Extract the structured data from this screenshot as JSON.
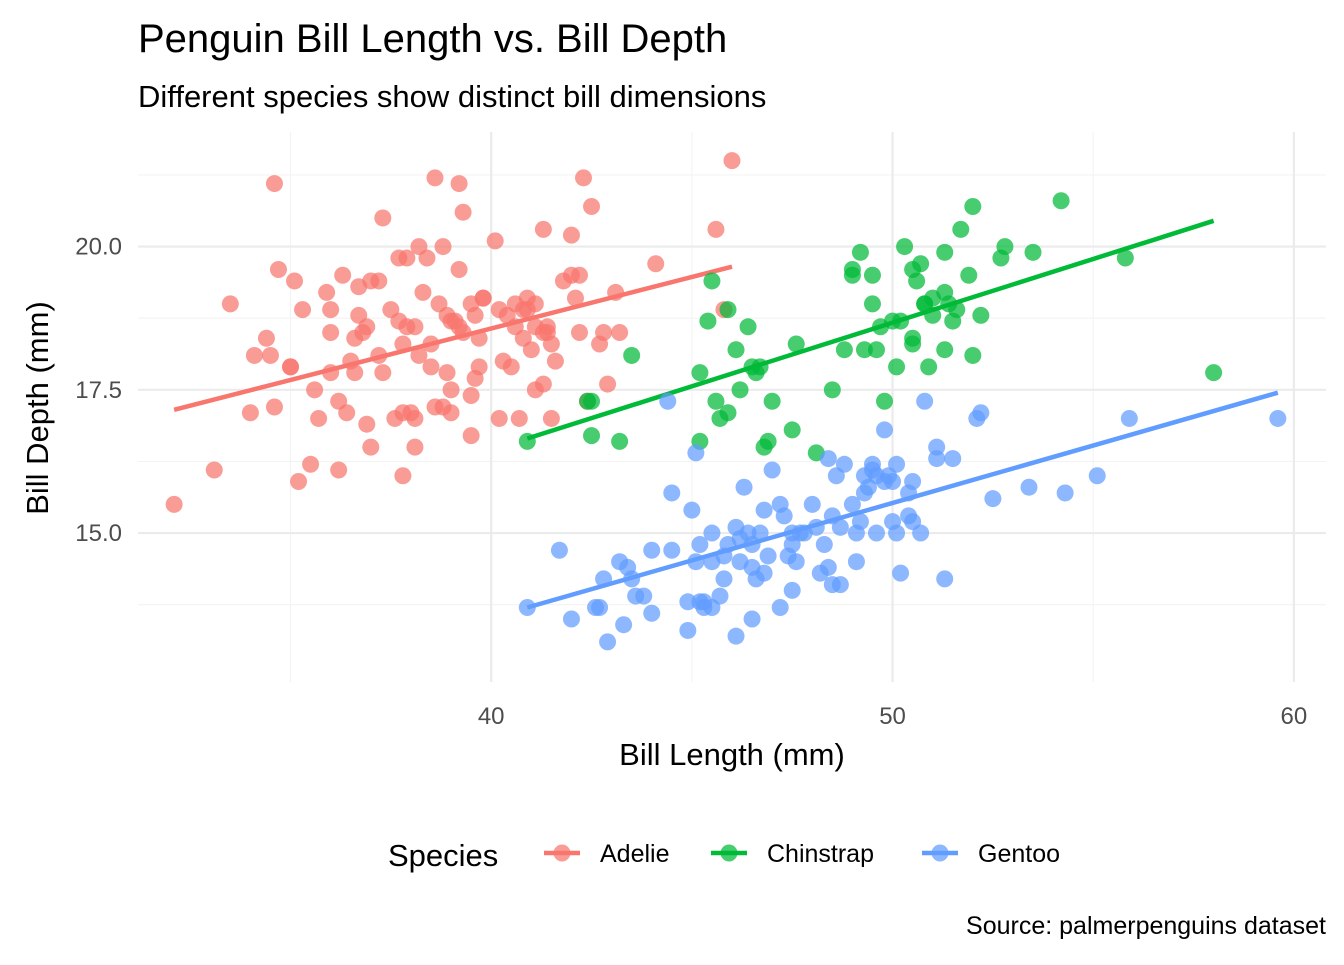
{
  "chart_data": {
    "type": "scatter",
    "title": "Penguin Bill Length vs. Bill Depth",
    "subtitle": "Different species show distinct bill dimensions",
    "xlabel": "Bill Length (mm)",
    "ylabel": "Bill Depth (mm)",
    "caption": "Source: palmerpenguins dataset",
    "xlim": [
      31.2,
      60.8
    ],
    "ylim": [
      12.4,
      22.0
    ],
    "x_ticks": [
      40,
      50,
      60
    ],
    "x_tick_labels": [
      "40",
      "50",
      "60"
    ],
    "x_minor_ticks": [
      35,
      45,
      55
    ],
    "y_ticks": [
      15.0,
      17.5,
      20.0
    ],
    "y_tick_labels": [
      "15.0",
      "17.5",
      "20.0"
    ],
    "y_minor_ticks": [
      13.75,
      16.25,
      18.75,
      21.25
    ],
    "grid": true,
    "legend": {
      "title": "Species",
      "position": "bottom"
    },
    "series": [
      {
        "name": "Adelie",
        "color": "#F8766D",
        "fit": [
          [
            32.1,
            17.15
          ],
          [
            46.0,
            19.65
          ]
        ],
        "points": [
          [
            32.1,
            15.5
          ],
          [
            33.1,
            16.1
          ],
          [
            33.5,
            19.0
          ],
          [
            34.0,
            17.1
          ],
          [
            34.1,
            18.1
          ],
          [
            34.4,
            18.4
          ],
          [
            34.5,
            18.1
          ],
          [
            34.6,
            17.2
          ],
          [
            34.6,
            21.1
          ],
          [
            35.1,
            19.4
          ],
          [
            35.0,
            17.9
          ],
          [
            35.2,
            15.9
          ],
          [
            35.3,
            18.9
          ],
          [
            35.5,
            16.2
          ],
          [
            35.6,
            17.5
          ],
          [
            35.7,
            17.0
          ],
          [
            35.9,
            19.2
          ],
          [
            36.0,
            18.5
          ],
          [
            36.0,
            17.8
          ],
          [
            36.2,
            17.3
          ],
          [
            36.2,
            16.1
          ],
          [
            36.3,
            19.5
          ],
          [
            36.5,
            18.0
          ],
          [
            36.6,
            17.8
          ],
          [
            36.7,
            18.8
          ],
          [
            36.7,
            19.3
          ],
          [
            36.8,
            18.5
          ],
          [
            36.9,
            16.9
          ],
          [
            37.0,
            16.5
          ],
          [
            37.2,
            18.1
          ],
          [
            37.3,
            20.5
          ],
          [
            37.6,
            17.0
          ],
          [
            37.7,
            18.7
          ],
          [
            37.8,
            18.3
          ],
          [
            37.8,
            16.0
          ],
          [
            37.9,
            18.6
          ],
          [
            37.9,
            19.8
          ],
          [
            38.1,
            17.0
          ],
          [
            38.1,
            18.6
          ],
          [
            38.2,
            20.0
          ],
          [
            38.3,
            19.2
          ],
          [
            38.5,
            17.9
          ],
          [
            38.6,
            21.2
          ],
          [
            38.7,
            19.0
          ],
          [
            38.8,
            17.2
          ],
          [
            38.9,
            17.8
          ],
          [
            39.0,
            18.7
          ],
          [
            39.0,
            17.5
          ],
          [
            39.1,
            18.7
          ],
          [
            39.2,
            19.6
          ],
          [
            39.2,
            21.1
          ],
          [
            39.3,
            20.6
          ],
          [
            39.5,
            16.7
          ],
          [
            39.5,
            17.4
          ],
          [
            39.6,
            17.7
          ],
          [
            39.7,
            18.4
          ],
          [
            39.8,
            19.1
          ],
          [
            40.1,
            20.1
          ],
          [
            40.2,
            17.0
          ],
          [
            40.3,
            18.0
          ],
          [
            40.5,
            17.9
          ],
          [
            40.6,
            18.6
          ],
          [
            40.7,
            17.0
          ],
          [
            40.8,
            18.4
          ],
          [
            40.9,
            18.9
          ],
          [
            41.1,
            18.6
          ],
          [
            41.1,
            19.0
          ],
          [
            41.3,
            17.6
          ],
          [
            41.3,
            20.3
          ],
          [
            41.4,
            18.5
          ],
          [
            41.5,
            17.0
          ],
          [
            41.6,
            18.0
          ],
          [
            41.8,
            19.4
          ],
          [
            42.0,
            19.5
          ],
          [
            42.1,
            19.1
          ],
          [
            42.2,
            18.5
          ],
          [
            42.3,
            21.2
          ],
          [
            42.5,
            20.7
          ],
          [
            42.7,
            18.3
          ],
          [
            42.8,
            18.5
          ],
          [
            42.9,
            17.6
          ],
          [
            43.1,
            19.2
          ],
          [
            43.2,
            18.5
          ],
          [
            44.1,
            19.7
          ],
          [
            45.6,
            20.3
          ],
          [
            45.8,
            18.9
          ],
          [
            46.0,
            21.5
          ],
          [
            34.7,
            19.6
          ],
          [
            35.0,
            17.9
          ],
          [
            36.0,
            18.9
          ],
          [
            36.4,
            17.1
          ],
          [
            36.6,
            18.4
          ],
          [
            37.0,
            19.4
          ],
          [
            37.3,
            17.8
          ],
          [
            37.5,
            18.9
          ],
          [
            37.7,
            19.8
          ],
          [
            37.8,
            17.1
          ],
          [
            38.0,
            17.1
          ],
          [
            38.1,
            16.5
          ],
          [
            38.2,
            18.1
          ],
          [
            38.6,
            17.2
          ],
          [
            38.8,
            20.0
          ],
          [
            39.0,
            17.1
          ],
          [
            39.2,
            18.6
          ],
          [
            39.6,
            18.8
          ],
          [
            39.7,
            17.9
          ],
          [
            39.8,
            19.1
          ],
          [
            40.2,
            18.9
          ],
          [
            40.6,
            19.0
          ],
          [
            40.8,
            18.9
          ],
          [
            41.0,
            18.2
          ],
          [
            41.1,
            17.5
          ],
          [
            41.4,
            18.6
          ],
          [
            41.5,
            18.3
          ],
          [
            42.0,
            20.2
          ],
          [
            42.2,
            19.5
          ],
          [
            42.4,
            17.3
          ],
          [
            38.4,
            19.8
          ],
          [
            38.9,
            18.8
          ],
          [
            39.5,
            19.0
          ],
          [
            40.4,
            18.8
          ],
          [
            41.3,
            18.5
          ],
          [
            36.9,
            18.6
          ],
          [
            37.2,
            19.4
          ],
          [
            38.5,
            18.3
          ],
          [
            39.3,
            18.5
          ],
          [
            40.9,
            19.1
          ]
        ]
      },
      {
        "name": "Chinstrap",
        "color": "#00BA38",
        "fit": [
          [
            40.9,
            16.65
          ],
          [
            58.0,
            20.45
          ]
        ],
        "points": [
          [
            40.9,
            16.6
          ],
          [
            42.4,
            17.3
          ],
          [
            42.5,
            17.3
          ],
          [
            42.5,
            16.7
          ],
          [
            43.2,
            16.6
          ],
          [
            43.5,
            18.1
          ],
          [
            45.2,
            16.6
          ],
          [
            45.2,
            17.8
          ],
          [
            45.4,
            18.7
          ],
          [
            45.5,
            19.4
          ],
          [
            45.6,
            17.3
          ],
          [
            45.7,
            17.0
          ],
          [
            45.9,
            17.1
          ],
          [
            45.9,
            18.9
          ],
          [
            46.1,
            18.2
          ],
          [
            46.2,
            17.5
          ],
          [
            46.4,
            18.6
          ],
          [
            46.5,
            17.9
          ],
          [
            46.6,
            17.8
          ],
          [
            46.7,
            17.9
          ],
          [
            46.8,
            16.5
          ],
          [
            46.9,
            16.6
          ],
          [
            47.0,
            17.3
          ],
          [
            47.5,
            16.8
          ],
          [
            47.6,
            18.3
          ],
          [
            48.1,
            16.4
          ],
          [
            48.5,
            17.5
          ],
          [
            48.8,
            18.2
          ],
          [
            49.0,
            19.5
          ],
          [
            49.0,
            19.6
          ],
          [
            49.2,
            19.9
          ],
          [
            49.3,
            18.2
          ],
          [
            49.5,
            19.0
          ],
          [
            49.6,
            18.2
          ],
          [
            49.7,
            18.6
          ],
          [
            49.8,
            17.3
          ],
          [
            50.1,
            17.9
          ],
          [
            50.2,
            18.7
          ],
          [
            50.3,
            20.0
          ],
          [
            50.5,
            18.4
          ],
          [
            50.5,
            19.6
          ],
          [
            50.6,
            19.4
          ],
          [
            50.7,
            19.7
          ],
          [
            50.8,
            19.0
          ],
          [
            50.9,
            17.9
          ],
          [
            51.0,
            18.8
          ],
          [
            51.3,
            19.2
          ],
          [
            51.3,
            18.2
          ],
          [
            51.4,
            19.0
          ],
          [
            51.5,
            18.7
          ],
          [
            51.7,
            20.3
          ],
          [
            51.9,
            19.5
          ],
          [
            52.0,
            18.1
          ],
          [
            52.0,
            20.7
          ],
          [
            52.2,
            18.8
          ],
          [
            52.7,
            19.8
          ],
          [
            52.8,
            20.0
          ],
          [
            53.5,
            19.9
          ],
          [
            54.2,
            20.8
          ],
          [
            55.8,
            19.8
          ],
          [
            58.0,
            17.8
          ],
          [
            50.0,
            18.7
          ],
          [
            50.5,
            18.3
          ],
          [
            51.0,
            19.1
          ],
          [
            51.3,
            19.9
          ],
          [
            49.5,
            19.5
          ],
          [
            50.8,
            19.0
          ],
          [
            51.6,
            18.9
          ]
        ]
      },
      {
        "name": "Gentoo",
        "color": "#619CFF",
        "fit": [
          [
            40.9,
            13.7
          ],
          [
            59.6,
            17.45
          ]
        ],
        "points": [
          [
            40.9,
            13.7
          ],
          [
            41.7,
            14.7
          ],
          [
            42.0,
            13.5
          ],
          [
            42.6,
            13.7
          ],
          [
            42.7,
            13.7
          ],
          [
            42.8,
            14.2
          ],
          [
            42.9,
            13.1
          ],
          [
            43.2,
            14.5
          ],
          [
            43.3,
            13.4
          ],
          [
            43.4,
            14.4
          ],
          [
            43.5,
            14.2
          ],
          [
            43.6,
            13.9
          ],
          [
            43.8,
            13.9
          ],
          [
            44.0,
            13.6
          ],
          [
            44.4,
            17.3
          ],
          [
            44.5,
            14.7
          ],
          [
            44.5,
            15.7
          ],
          [
            44.9,
            13.8
          ],
          [
            44.9,
            13.3
          ],
          [
            45.0,
            15.4
          ],
          [
            45.1,
            14.5
          ],
          [
            45.2,
            13.8
          ],
          [
            45.2,
            14.8
          ],
          [
            45.3,
            13.7
          ],
          [
            45.3,
            13.8
          ],
          [
            45.5,
            13.7
          ],
          [
            45.5,
            15.0
          ],
          [
            45.7,
            13.9
          ],
          [
            45.8,
            14.6
          ],
          [
            45.8,
            14.2
          ],
          [
            46.1,
            13.2
          ],
          [
            46.2,
            14.5
          ],
          [
            46.2,
            14.9
          ],
          [
            46.4,
            15.0
          ],
          [
            46.5,
            13.5
          ],
          [
            46.5,
            14.4
          ],
          [
            46.5,
            14.8
          ],
          [
            46.6,
            14.2
          ],
          [
            46.8,
            14.3
          ],
          [
            46.8,
            15.4
          ],
          [
            46.9,
            14.6
          ],
          [
            47.2,
            13.7
          ],
          [
            47.2,
            15.5
          ],
          [
            47.3,
            15.3
          ],
          [
            47.4,
            14.6
          ],
          [
            47.5,
            14.0
          ],
          [
            47.5,
            15.0
          ],
          [
            47.6,
            14.5
          ],
          [
            47.7,
            15.0
          ],
          [
            47.8,
            15.0
          ],
          [
            48.1,
            15.1
          ],
          [
            48.2,
            14.3
          ],
          [
            48.4,
            14.4
          ],
          [
            48.4,
            16.3
          ],
          [
            48.5,
            14.1
          ],
          [
            48.6,
            16.0
          ],
          [
            48.7,
            14.1
          ],
          [
            48.7,
            15.1
          ],
          [
            48.8,
            16.2
          ],
          [
            49.1,
            14.5
          ],
          [
            49.1,
            15.0
          ],
          [
            49.2,
            15.2
          ],
          [
            49.3,
            15.7
          ],
          [
            49.4,
            15.8
          ],
          [
            49.5,
            16.1
          ],
          [
            49.5,
            16.2
          ],
          [
            49.6,
            15.0
          ],
          [
            49.8,
            15.9
          ],
          [
            49.8,
            16.8
          ],
          [
            50.0,
            15.2
          ],
          [
            50.0,
            15.9
          ],
          [
            50.1,
            15.0
          ],
          [
            50.2,
            14.3
          ],
          [
            50.4,
            15.3
          ],
          [
            50.4,
            15.7
          ],
          [
            50.5,
            15.2
          ],
          [
            50.5,
            15.9
          ],
          [
            50.7,
            15.0
          ],
          [
            50.8,
            17.3
          ],
          [
            51.1,
            16.3
          ],
          [
            51.1,
            16.5
          ],
          [
            51.3,
            14.2
          ],
          [
            51.5,
            16.3
          ],
          [
            52.1,
            17.0
          ],
          [
            52.2,
            17.1
          ],
          [
            52.5,
            15.6
          ],
          [
            53.4,
            15.8
          ],
          [
            54.3,
            15.7
          ],
          [
            55.1,
            16.0
          ],
          [
            55.9,
            17.0
          ],
          [
            59.6,
            17.0
          ],
          [
            45.1,
            16.4
          ],
          [
            46.1,
            15.1
          ],
          [
            47.0,
            16.1
          ],
          [
            48.0,
            15.5
          ],
          [
            49.3,
            16.0
          ],
          [
            49.6,
            16.0
          ],
          [
            50.1,
            16.2
          ],
          [
            46.3,
            15.8
          ],
          [
            47.5,
            14.8
          ],
          [
            48.5,
            15.3
          ],
          [
            49.9,
            16.0
          ],
          [
            45.5,
            14.5
          ],
          [
            44.0,
            14.7
          ],
          [
            45.9,
            14.8
          ],
          [
            46.7,
            15.0
          ],
          [
            48.3,
            14.8
          ],
          [
            49.0,
            15.5
          ]
        ]
      }
    ]
  }
}
